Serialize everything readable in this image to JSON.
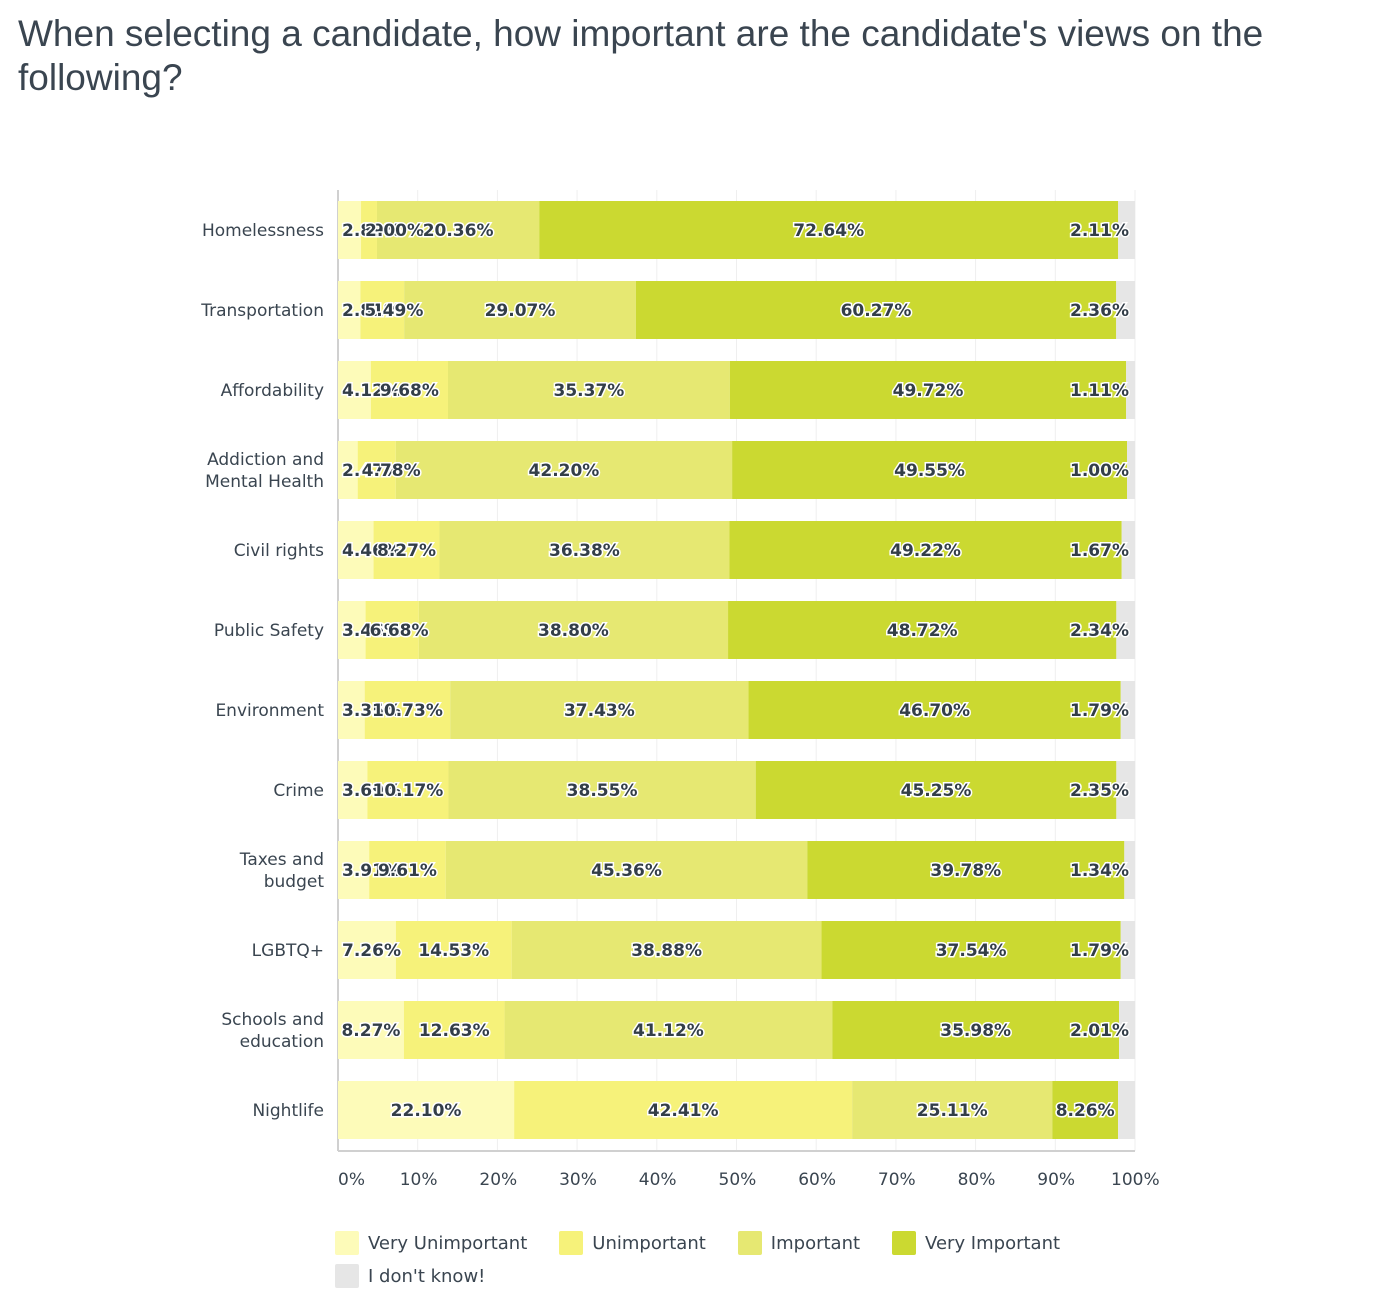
{
  "title": "When selecting a candidate, how important are the candidate's views on the following?",
  "chart_data": {
    "type": "bar",
    "orientation": "horizontal",
    "stacked": true,
    "title": "When selecting a candidate, how important are the candidate's views on the following?",
    "xlabel": "",
    "ylabel": "",
    "xlim": [
      0,
      100
    ],
    "x_ticks": [
      "0%",
      "10%",
      "20%",
      "30%",
      "40%",
      "50%",
      "60%",
      "70%",
      "80%",
      "90%",
      "100%"
    ],
    "grid": true,
    "legend_position": "bottom",
    "categories": [
      "Homelessness",
      "Transportation",
      "Affordability",
      "Addiction and Mental Health",
      "Civil rights",
      "Public Safety",
      "Environment",
      "Crime",
      "Taxes and budget",
      "LGBTQ+",
      "Schools and education",
      "Nightlife"
    ],
    "series": [
      {
        "name": "Very Unimportant",
        "color": "#fdfbb9",
        "values": [
          2.89,
          2.81,
          4.12,
          2.47,
          4.46,
          3.46,
          3.35,
          3.69,
          3.91,
          7.26,
          8.27,
          22.1
        ]
      },
      {
        "name": "Unimportant",
        "color": "#f6f27a",
        "values": [
          2.0,
          5.49,
          9.68,
          4.78,
          8.27,
          6.68,
          10.73,
          10.17,
          9.61,
          14.53,
          12.63,
          42.41
        ]
      },
      {
        "name": "Important",
        "color": "#e6e872",
        "values": [
          20.36,
          29.07,
          35.37,
          42.2,
          36.38,
          38.8,
          37.43,
          38.55,
          45.36,
          38.88,
          41.12,
          25.11
        ]
      },
      {
        "name": "Very Important",
        "color": "#cbd931",
        "values": [
          72.64,
          60.27,
          49.72,
          49.55,
          49.22,
          48.72,
          46.7,
          45.25,
          39.78,
          37.54,
          35.98,
          8.26
        ]
      },
      {
        "name": "I don't know!",
        "color": "#e6e6e6",
        "values": [
          2.11,
          2.36,
          1.11,
          1.0,
          1.67,
          2.34,
          1.79,
          2.35,
          1.34,
          1.79,
          2.01,
          2.12
        ]
      }
    ]
  }
}
